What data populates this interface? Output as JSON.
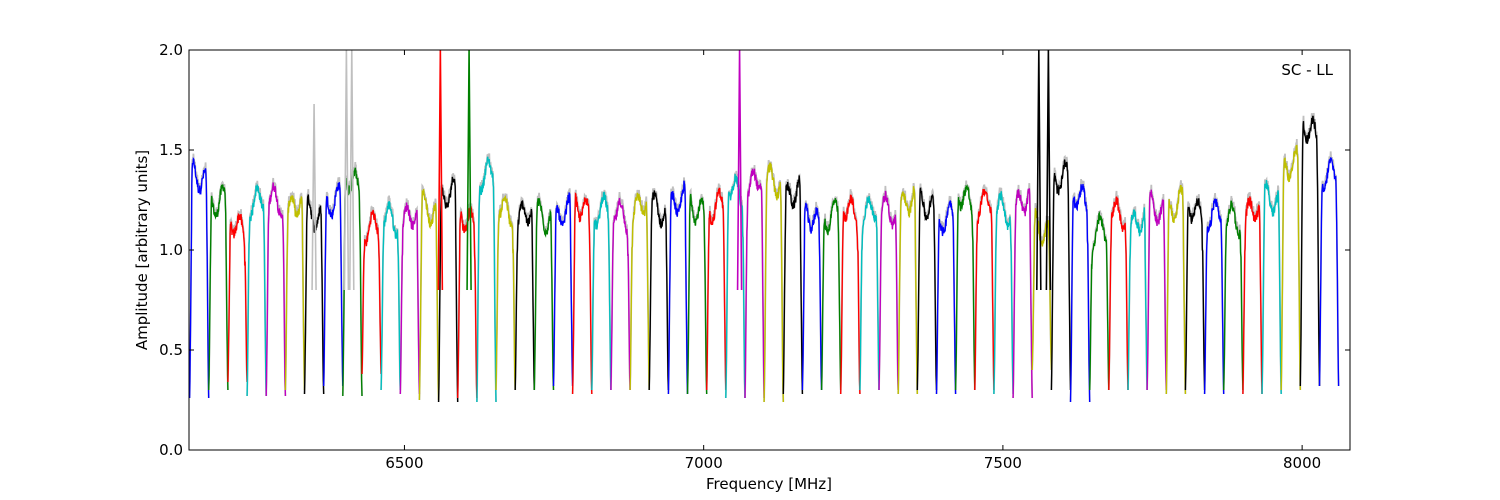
{
  "chart_data": {
    "type": "line",
    "xlabel": "Frequency [MHz]",
    "ylabel": "Amplitude [arbitrary units]",
    "annotation": "SC - LL",
    "xlim": [
      6140,
      8080
    ],
    "ylim": [
      0.0,
      2.0
    ],
    "xticks": [
      6500,
      7000,
      7500,
      8000
    ],
    "xtick_labels": [
      "6500",
      "7000",
      "7500",
      "8000"
    ],
    "yticks": [
      0.0,
      0.5,
      1.0,
      1.5,
      2.0
    ],
    "ytick_labels": [
      "0.0",
      "0.5",
      "1.0",
      "1.5",
      "2.0"
    ],
    "grid": false,
    "legend": "none",
    "background_trace_color": "#bfbfbf",
    "channel_width_mhz": 32,
    "channel_centers_mhz": [
      6157,
      6189,
      6221,
      6253,
      6285,
      6317,
      6349,
      6381,
      6413,
      6445,
      6477,
      6509,
      6541,
      6573,
      6605,
      6637,
      6669,
      6701,
      6733,
      6765,
      6797,
      6829,
      6861,
      6893,
      6925,
      6957,
      6989,
      7021,
      7053,
      7085,
      7117,
      7149,
      7181,
      7213,
      7245,
      7277,
      7309,
      7341,
      7373,
      7405,
      7437,
      7469,
      7501,
      7533,
      7565,
      7597,
      7629,
      7661,
      7693,
      7725,
      7757,
      7789,
      7821,
      7853,
      7885,
      7917,
      7949,
      7981,
      8013,
      8045
    ],
    "channel_colors": [
      "#0000ff",
      "#008000",
      "#ff0000",
      "#00bfbf",
      "#bf00bf",
      "#bfbf00",
      "#000000",
      "#0000ff",
      "#008000",
      "#ff0000",
      "#00bfbf",
      "#bf00bf",
      "#bfbf00",
      "#000000",
      "#ff0000",
      "#00bfbf",
      "#bfbf00",
      "#000000",
      "#008000",
      "#0000ff",
      "#ff0000",
      "#00bfbf",
      "#bf00bf",
      "#bfbf00",
      "#000000",
      "#0000ff",
      "#008000",
      "#ff0000",
      "#00bfbf",
      "#bf00bf",
      "#bfbf00",
      "#000000",
      "#0000ff",
      "#008000",
      "#ff0000",
      "#00bfbf",
      "#bf00bf",
      "#bfbf00",
      "#000000",
      "#0000ff",
      "#008000",
      "#ff0000",
      "#00bfbf",
      "#bf00bf",
      "#bfbf00",
      "#000000",
      "#0000ff",
      "#008000",
      "#ff0000",
      "#00bfbf",
      "#bf00bf",
      "#bfbf00",
      "#000000",
      "#0000ff",
      "#008000",
      "#ff0000",
      "#00bfbf",
      "#bfbf00",
      "#000000",
      "#0000ff"
    ],
    "channel_plateau_amplitude": [
      1.36,
      1.24,
      1.12,
      1.25,
      1.25,
      1.22,
      1.17,
      1.24,
      1.34,
      1.12,
      1.16,
      1.17,
      1.2,
      1.28,
      1.15,
      1.38,
      1.2,
      1.18,
      1.16,
      1.18,
      1.21,
      1.2,
      1.18,
      1.22,
      1.2,
      1.24,
      1.2,
      1.22,
      1.3,
      1.34,
      1.34,
      1.28,
      1.16,
      1.17,
      1.2,
      1.2,
      1.2,
      1.24,
      1.22,
      1.16,
      1.26,
      1.24,
      1.2,
      1.24,
      1.1,
      1.36,
      1.26,
      1.1,
      1.18,
      1.14,
      1.2,
      1.22,
      1.2,
      1.18,
      1.16,
      1.2,
      1.25,
      1.42,
      1.6,
      1.38
    ],
    "channel_min_amplitude": [
      0.26,
      0.3,
      0.34,
      0.27,
      0.27,
      0.3,
      0.28,
      0.32,
      0.27,
      0.38,
      0.3,
      0.28,
      0.25,
      0.24,
      0.26,
      0.24,
      0.3,
      0.3,
      0.3,
      0.32,
      0.28,
      0.3,
      0.3,
      0.3,
      0.3,
      0.28,
      0.28,
      0.3,
      0.26,
      0.26,
      0.24,
      0.28,
      0.3,
      0.3,
      0.28,
      0.3,
      0.3,
      0.28,
      0.3,
      0.28,
      0.3,
      0.3,
      0.28,
      0.26,
      0.4,
      0.3,
      0.24,
      0.3,
      0.3,
      0.3,
      0.3,
      0.28,
      0.3,
      0.28,
      0.3,
      0.28,
      0.28,
      0.3,
      0.32,
      0.32
    ],
    "narrowband_spikes": [
      {
        "x": 6403,
        "y": 2.0,
        "color": "#bfbfbf"
      },
      {
        "x": 6412,
        "y": 2.0,
        "color": "#bfbfbf"
      },
      {
        "x": 6349,
        "y": 1.73,
        "color": "#bfbfbf"
      },
      {
        "x": 6560,
        "y": 2.0,
        "color": "#ff0000"
      },
      {
        "x": 6608,
        "y": 2.0,
        "color": "#008000"
      },
      {
        "x": 7060,
        "y": 2.0,
        "color": "#bf00bf"
      },
      {
        "x": 7560,
        "y": 2.0,
        "color": "#000000"
      },
      {
        "x": 7576,
        "y": 2.0,
        "color": "#000000"
      }
    ]
  }
}
